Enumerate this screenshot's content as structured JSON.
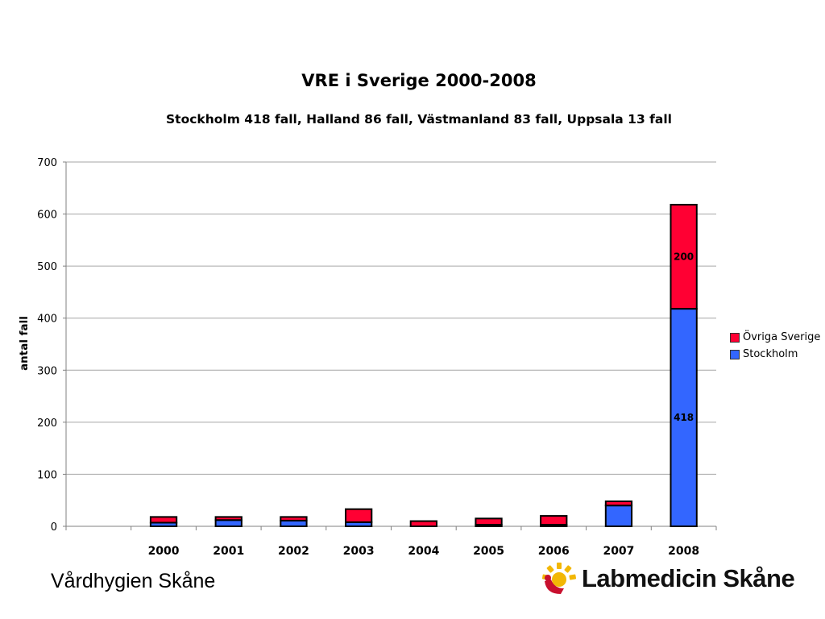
{
  "chart_data": {
    "type": "bar",
    "stacked": true,
    "title": "VRE i Sverige 2000-2008",
    "subtitle": "Stockholm 418 fall, Halland 86 fall, Västmanland 83 fall, Uppsala 13 fall",
    "ylabel": "antal fall",
    "xlabel": "",
    "categories": [
      "",
      "2000",
      "2001",
      "2002",
      "2003",
      "2004",
      "2005",
      "2006",
      "2007",
      "2008"
    ],
    "ylim": [
      0,
      700
    ],
    "yticks": [
      0,
      100,
      200,
      300,
      400,
      500,
      600,
      700
    ],
    "grid": true,
    "legend_position": "right",
    "series": [
      {
        "name": "Stockholm",
        "color": "#3366ff",
        "values": [
          0,
          7,
          12,
          11,
          8,
          0,
          3,
          3,
          40,
          418
        ]
      },
      {
        "name": "Övriga Sverige",
        "color": "#ff0033",
        "values": [
          0,
          11,
          6,
          7,
          25,
          10,
          12,
          17,
          8,
          200
        ]
      }
    ],
    "data_labels": [
      {
        "series": "Stockholm",
        "category": "2008",
        "text": "418"
      },
      {
        "series": "Övriga Sverige",
        "category": "2008",
        "text": "200"
      }
    ]
  },
  "legend": {
    "items": [
      {
        "label": "Övriga Sverige",
        "color": "#ff0033"
      },
      {
        "label": "Stockholm",
        "color": "#3366ff"
      }
    ]
  },
  "footer": {
    "left_text": "Vårdhygien Skåne",
    "logo_text": "Labmedicin Skåne"
  }
}
